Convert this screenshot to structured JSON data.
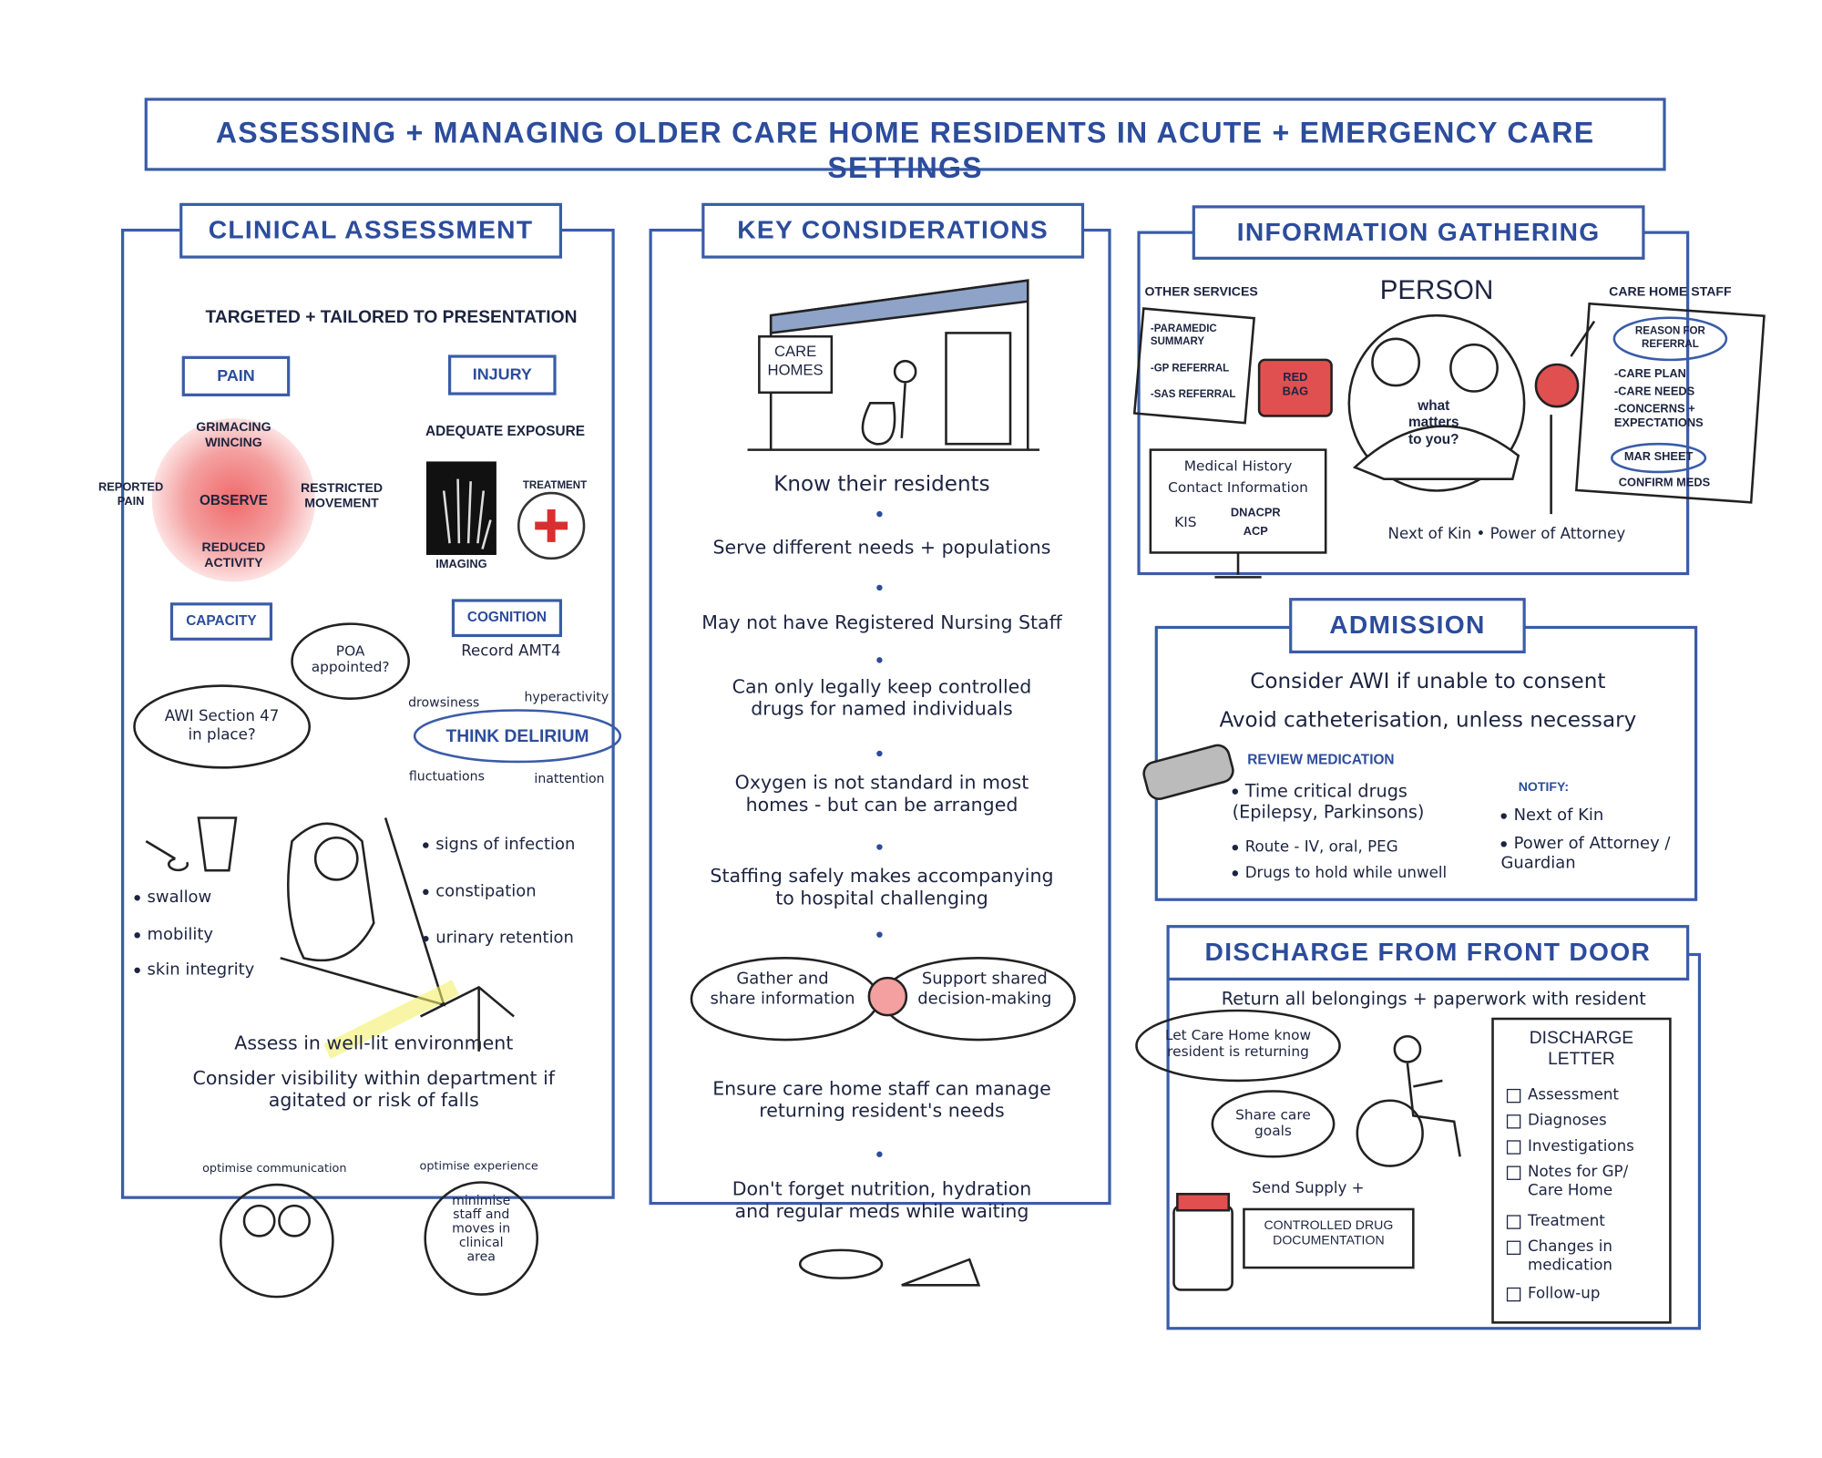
{
  "title": "ASSESSING + MANAGING OLDER CARE HOME RESIDENTS IN ACUTE + EMERGENCY CARE SETTINGS",
  "clinical_assessment": {
    "heading": "CLINICAL ASSESSMENT",
    "subtitle": "TARGETED + TAILORED TO PRESENTATION",
    "pain": {
      "label": "PAIN",
      "observe": "OBSERVE",
      "cues": [
        "GRIMACING\nWINCING",
        "REPORTED\nPAIN",
        "RESTRICTED\nMOVEMENT",
        "REDUCED\nACTIVITY"
      ]
    },
    "injury": {
      "label": "INJURY",
      "exposure": "ADEQUATE EXPOSURE",
      "imaging": "IMAGING",
      "treatment": "TREATMENT"
    },
    "capacity": {
      "label": "CAPACITY",
      "bubbles": [
        "AWI Section 47\nin place?",
        "POA\nappointed?"
      ]
    },
    "cognition": {
      "label": "COGNITION",
      "note": "Record AMT4",
      "delirium": "THINK DELIRIUM",
      "features": [
        "drowsiness",
        "hyperactivity",
        "fluctuations",
        "inattention"
      ]
    },
    "checks_left": [
      "swallow",
      "mobility",
      "skin integrity"
    ],
    "checks_right": [
      "signs of infection",
      "constipation",
      "urinary retention"
    ],
    "environment": [
      "Assess in well-lit environment",
      "Consider visibility within department if\nagitated or risk of falls"
    ],
    "circles": [
      {
        "label": "optimise communication"
      },
      {
        "label": "optimise experience",
        "text": "minimise\nstaff and\nmoves in\nclinical\narea"
      }
    ]
  },
  "key_considerations": {
    "heading": "KEY CONSIDERATIONS",
    "sign": "CARE\nHOMES",
    "items": [
      "Know their residents",
      "Serve different needs + populations",
      "May not have Registered Nursing Staff",
      "Can only legally keep controlled\ndrugs for named individuals",
      "Oxygen is not standard in most\nhomes - but can be arranged",
      "Staffing safely makes accompanying\nto hospital challenging"
    ],
    "bubbles": [
      "Gather and\nshare information",
      "Support shared\ndecision-making"
    ],
    "after": [
      "Ensure care home staff can manage\nreturning resident's needs",
      "Don't forget nutrition, hydration\nand regular meds while waiting"
    ]
  },
  "information_gathering": {
    "heading": "INFORMATION GATHERING",
    "other_services": {
      "label": "OTHER SERVICES",
      "documents": [
        "-PARAMEDIC\nSUMMARY",
        "-GP REFERRAL",
        "-SAS REFERRAL"
      ],
      "bag": "RED\nBAG"
    },
    "person": {
      "label": "PERSON",
      "bubble": "what\nmatters\nto you?"
    },
    "care_home_staff": {
      "label": "CARE HOME STAFF",
      "reason": "REASON FOR\nREFERRAL",
      "items": [
        "-CARE PLAN",
        "-CARE NEEDS",
        "-CONCERNS +\nEXPECTATIONS"
      ],
      "mar": "MAR SHEET",
      "confirm": "CONFIRM MEDS"
    },
    "records": {
      "lines": [
        "Medical History",
        "Contact Information"
      ],
      "kis": "KIS",
      "plans": [
        "DNACPR",
        "ACP"
      ]
    },
    "contacts": "Next of Kin • Power of Attorney"
  },
  "admission": {
    "heading": "ADMISSION",
    "lines": [
      "Consider AWI if unable to consent",
      "Avoid catheterisation, unless necessary"
    ],
    "review": {
      "label": "REVIEW MEDICATION",
      "items": [
        "Time critical drugs\n(Epilepsy, Parkinsons)",
        "Route - IV, oral, PEG",
        "Drugs to hold while unwell"
      ]
    },
    "notify": {
      "label": "NOTIFY:",
      "items": [
        "Next of Kin",
        "Power of Attorney /\nGuardian"
      ]
    }
  },
  "discharge": {
    "heading": "DISCHARGE FROM FRONT DOOR",
    "line": "Return all belongings + paperwork with resident",
    "bubbles": [
      "Let Care Home know\nresident is returning",
      "Share care\ngoals"
    ],
    "supply": "Send Supply +",
    "documentation": "CONTROLLED DRUG\nDOCUMENTATION",
    "letter": {
      "title": "DISCHARGE\nLETTER",
      "items": [
        "Assessment",
        "Diagnoses",
        "Investigations",
        "Notes for GP/\nCare Home",
        "Treatment",
        "Changes in\nmedication",
        "Follow-up"
      ]
    }
  }
}
